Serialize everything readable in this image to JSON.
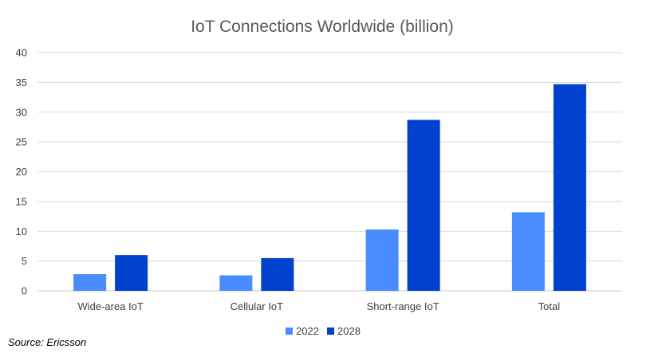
{
  "chart_data": {
    "type": "bar",
    "title": "IoT Connections Worldwide (billion)",
    "xlabel": "",
    "ylabel": "",
    "categories": [
      "Wide-area IoT",
      "Cellular IoT",
      "Short-range IoT",
      "Total"
    ],
    "series": [
      {
        "name": "2022",
        "color": "#4a8cff",
        "values": [
          2.8,
          2.6,
          10.3,
          13.2
        ]
      },
      {
        "name": "2028",
        "color": "#0041d0",
        "values": [
          6.0,
          5.5,
          28.7,
          34.7
        ]
      }
    ],
    "ylim": [
      0,
      40
    ],
    "yticks": [
      "0",
      "5",
      "10",
      "15",
      "20",
      "25",
      "30",
      "35",
      "40"
    ],
    "grid": true,
    "legend": "bottom"
  },
  "footer": {
    "source": "Source: Ericsson"
  }
}
